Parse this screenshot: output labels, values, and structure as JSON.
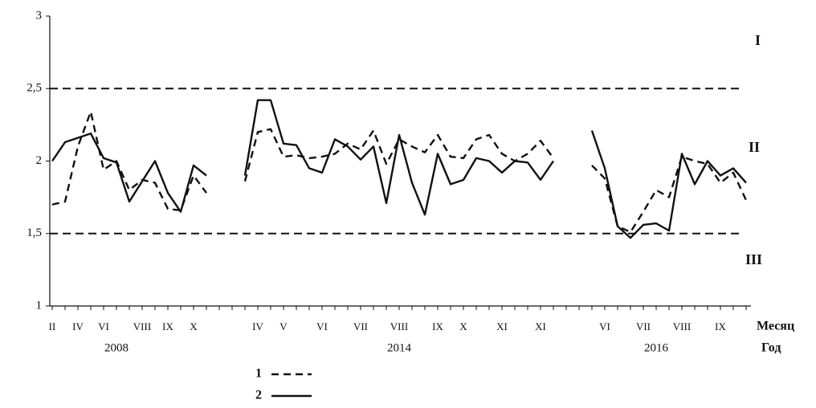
{
  "chart_data": {
    "type": "line",
    "categories": [
      "II",
      null,
      "IV",
      null,
      "VI",
      null,
      null,
      "VIII",
      null,
      "IX",
      null,
      "X",
      null,
      null,
      null,
      null,
      "IV",
      null,
      "V",
      null,
      null,
      "VI",
      null,
      null,
      "VII",
      null,
      null,
      "VIII",
      null,
      null,
      "IX",
      null,
      "X",
      null,
      null,
      "XI",
      null,
      null,
      "XI",
      null,
      null,
      null,
      null,
      "VI",
      null,
      null,
      "VII",
      null,
      null,
      "VIII",
      null,
      null,
      "IX",
      null,
      null
    ],
    "years": [
      null,
      null,
      null,
      null,
      null,
      "2008",
      null,
      null,
      null,
      null,
      null,
      null,
      null,
      null,
      null,
      null,
      null,
      null,
      null,
      null,
      null,
      null,
      null,
      null,
      null,
      null,
      null,
      "2014",
      null,
      null,
      null,
      null,
      null,
      null,
      null,
      null,
      null,
      null,
      null,
      null,
      null,
      null,
      null,
      null,
      null,
      null,
      null,
      "2016",
      null,
      null,
      null,
      null,
      null,
      null,
      null
    ],
    "x_label": "Месяц",
    "year_label": "Год",
    "series": [
      {
        "name": "1",
        "color": "#111111",
        "style": "dashed",
        "values": [
          1.7,
          1.72,
          2.1,
          2.34,
          1.94,
          2.0,
          1.8,
          1.87,
          1.85,
          1.67,
          1.66,
          1.9,
          1.78,
          null,
          null,
          1.86,
          2.2,
          2.22,
          2.03,
          2.04,
          2.02,
          2.03,
          2.05,
          2.12,
          2.08,
          2.21,
          1.98,
          2.15,
          2.1,
          2.06,
          2.18,
          2.03,
          2.02,
          2.15,
          2.18,
          2.05,
          2.0,
          2.05,
          2.14,
          2.02,
          null,
          null,
          1.97,
          1.88,
          1.55,
          1.51,
          1.65,
          1.8,
          1.75,
          2.03,
          2.0,
          1.98,
          1.85,
          1.92,
          1.73
        ]
      },
      {
        "name": "2",
        "color": "#111111",
        "style": "solid",
        "values": [
          2.0,
          2.13,
          2.16,
          2.19,
          2.02,
          1.99,
          1.72,
          1.86,
          2.0,
          1.78,
          1.65,
          1.97,
          1.9,
          null,
          null,
          1.9,
          2.42,
          2.42,
          2.12,
          2.11,
          1.95,
          1.92,
          2.15,
          2.1,
          2.01,
          2.1,
          1.71,
          2.18,
          1.85,
          1.63,
          2.05,
          1.84,
          1.87,
          2.02,
          2.0,
          1.92,
          2.0,
          1.99,
          1.87,
          2.0,
          null,
          null,
          2.21,
          1.95,
          1.55,
          1.47,
          1.56,
          1.57,
          1.52,
          2.05,
          1.84,
          2.0,
          1.9,
          1.95,
          1.85
        ]
      }
    ],
    "ylim": [
      1,
      3
    ],
    "yticks": [
      1,
      {
        "value": 1.5,
        "label": "1,5"
      },
      2,
      {
        "value": 2.5,
        "label": "2,5"
      },
      3
    ],
    "reference_lines": [
      2.5,
      1.5
    ],
    "zone_labels": [
      "I",
      "II",
      "III"
    ],
    "grid": false
  }
}
